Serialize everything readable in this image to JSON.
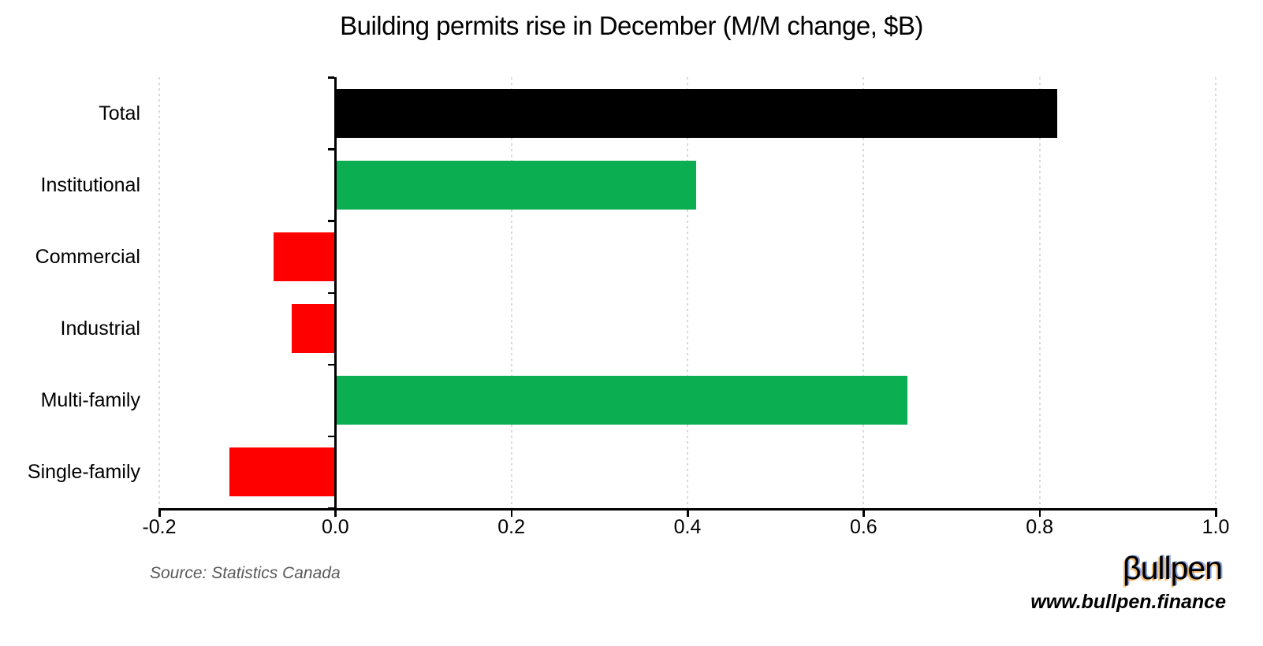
{
  "chart_data": {
    "type": "bar",
    "orientation": "horizontal",
    "title": "Building permits rise in December (M/M change, $B)",
    "categories": [
      "Total",
      "Institutional",
      "Commercial",
      "Industrial",
      "Multi-family",
      "Single-family"
    ],
    "values": [
      0.82,
      0.41,
      -0.07,
      -0.05,
      0.65,
      -0.12
    ],
    "bar_colors": [
      "#000000",
      "#0BAE51",
      "#FF0000",
      "#FF0000",
      "#0BAE51",
      "#FF0000"
    ],
    "xlim": [
      -0.2,
      1.0
    ],
    "xticks": [
      -0.2,
      0.0,
      0.2,
      0.4,
      0.6,
      0.8,
      1.0
    ],
    "xtick_labels": [
      "-0.2",
      "0.0",
      "0.2",
      "0.4",
      "0.6",
      "0.8",
      "1.0"
    ],
    "xlabel": "",
    "ylabel": "",
    "grid": "vertical dotted gridlines at each x tick",
    "legend": "none",
    "palette": {
      "total": "#000000",
      "positive": "#0BAE51",
      "negative": "#FF0000",
      "gridline": "#D9D9D9",
      "axis": "#000000"
    }
  },
  "source_note": "Source: Statistics Canada",
  "brand": {
    "logo_text": "βullpen",
    "website": "www.bullpen.finance"
  }
}
